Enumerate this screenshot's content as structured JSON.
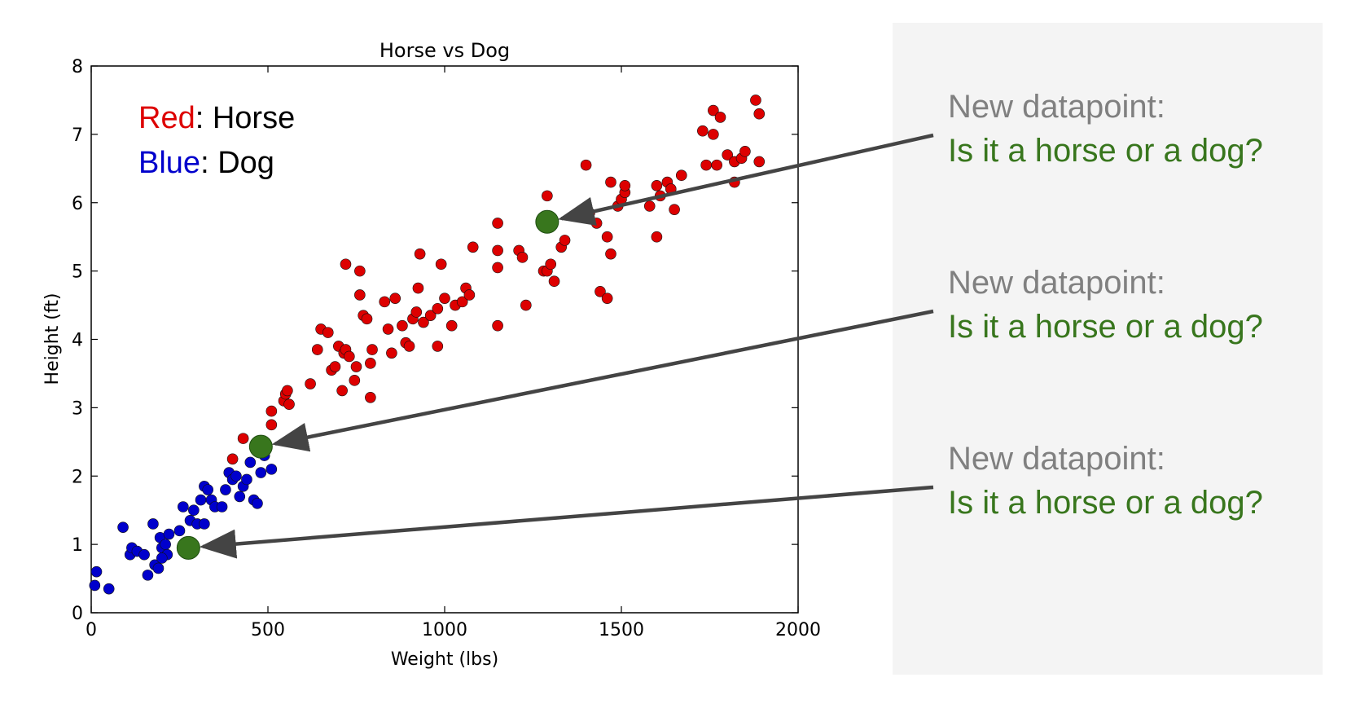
{
  "chart_data": {
    "type": "scatter",
    "title": "Horse vs Dog",
    "xlabel": "Weight (lbs)",
    "ylabel": "Height (ft)",
    "xlim": [
      0,
      2000
    ],
    "ylim": [
      0,
      8
    ],
    "xticks": [
      0,
      500,
      1000,
      1500,
      2000
    ],
    "yticks": [
      0,
      1,
      2,
      3,
      4,
      5,
      6,
      7,
      8
    ],
    "grid": false,
    "legend": {
      "position": "top-left",
      "entries": [
        {
          "color_word": "Red",
          "separator": ": ",
          "label": "Horse",
          "color": "#dd0000"
        },
        {
          "color_word": "Blue",
          "separator": ": ",
          "label": "Dog",
          "color": "#0000cc"
        }
      ]
    },
    "series": [
      {
        "name": "Horse",
        "color": "#dd0000",
        "points": [
          [
            400,
            2.25
          ],
          [
            430,
            2.55
          ],
          [
            510,
            2.75
          ],
          [
            510,
            2.95
          ],
          [
            545,
            3.1
          ],
          [
            550,
            3.2
          ],
          [
            555,
            3.25
          ],
          [
            560,
            3.05
          ],
          [
            620,
            3.35
          ],
          [
            640,
            3.85
          ],
          [
            650,
            4.15
          ],
          [
            670,
            4.1
          ],
          [
            680,
            3.55
          ],
          [
            690,
            3.6
          ],
          [
            700,
            3.9
          ],
          [
            710,
            3.25
          ],
          [
            715,
            3.8
          ],
          [
            720,
            3.85
          ],
          [
            730,
            3.75
          ],
          [
            745,
            3.4
          ],
          [
            750,
            3.6
          ],
          [
            760,
            4.65
          ],
          [
            770,
            4.35
          ],
          [
            780,
            4.3
          ],
          [
            790,
            3.65
          ],
          [
            790,
            3.15
          ],
          [
            795,
            3.85
          ],
          [
            720,
            5.1
          ],
          [
            760,
            5.0
          ],
          [
            830,
            4.55
          ],
          [
            840,
            4.15
          ],
          [
            850,
            3.8
          ],
          [
            860,
            4.6
          ],
          [
            880,
            4.2
          ],
          [
            890,
            3.95
          ],
          [
            900,
            3.9
          ],
          [
            910,
            4.3
          ],
          [
            920,
            4.4
          ],
          [
            925,
            4.75
          ],
          [
            930,
            5.25
          ],
          [
            940,
            4.25
          ],
          [
            960,
            4.35
          ],
          [
            980,
            4.45
          ],
          [
            980,
            3.9
          ],
          [
            990,
            5.1
          ],
          [
            1000,
            4.6
          ],
          [
            1020,
            4.2
          ],
          [
            1030,
            4.5
          ],
          [
            1050,
            4.55
          ],
          [
            1060,
            4.75
          ],
          [
            1070,
            4.65
          ],
          [
            1080,
            5.35
          ],
          [
            1150,
            4.2
          ],
          [
            1150,
            5.3
          ],
          [
            1150,
            5.05
          ],
          [
            1150,
            5.7
          ],
          [
            1210,
            5.3
          ],
          [
            1220,
            5.2
          ],
          [
            1230,
            4.5
          ],
          [
            1280,
            5.0
          ],
          [
            1290,
            5.0
          ],
          [
            1290,
            6.1
          ],
          [
            1300,
            5.1
          ],
          [
            1310,
            4.85
          ],
          [
            1330,
            5.35
          ],
          [
            1340,
            5.45
          ],
          [
            1400,
            6.55
          ],
          [
            1410,
            5.85
          ],
          [
            1430,
            5.7
          ],
          [
            1440,
            4.7
          ],
          [
            1460,
            4.6
          ],
          [
            1460,
            5.5
          ],
          [
            1470,
            5.25
          ],
          [
            1470,
            6.3
          ],
          [
            1490,
            5.95
          ],
          [
            1500,
            6.05
          ],
          [
            1510,
            6.15
          ],
          [
            1510,
            6.25
          ],
          [
            1580,
            5.95
          ],
          [
            1600,
            5.5
          ],
          [
            1600,
            6.25
          ],
          [
            1610,
            6.1
          ],
          [
            1630,
            6.3
          ],
          [
            1640,
            6.2
          ],
          [
            1650,
            5.9
          ],
          [
            1670,
            6.4
          ],
          [
            1730,
            7.05
          ],
          [
            1740,
            6.55
          ],
          [
            1760,
            7.0
          ],
          [
            1760,
            7.35
          ],
          [
            1770,
            6.55
          ],
          [
            1780,
            7.25
          ],
          [
            1800,
            6.7
          ],
          [
            1820,
            6.6
          ],
          [
            1820,
            6.3
          ],
          [
            1840,
            6.65
          ],
          [
            1850,
            6.75
          ],
          [
            1880,
            7.5
          ],
          [
            1890,
            7.3
          ],
          [
            1890,
            6.6
          ]
        ]
      },
      {
        "name": "Dog",
        "color": "#0000cc",
        "points": [
          [
            10,
            0.4
          ],
          [
            15,
            0.6
          ],
          [
            50,
            0.35
          ],
          [
            90,
            1.25
          ],
          [
            110,
            0.85
          ],
          [
            115,
            0.95
          ],
          [
            130,
            0.9
          ],
          [
            150,
            0.85
          ],
          [
            160,
            0.55
          ],
          [
            175,
            1.3
          ],
          [
            180,
            0.7
          ],
          [
            190,
            0.65
          ],
          [
            195,
            1.1
          ],
          [
            200,
            0.95
          ],
          [
            210,
            1.0
          ],
          [
            215,
            0.85
          ],
          [
            220,
            1.15
          ],
          [
            250,
            1.2
          ],
          [
            260,
            1.55
          ],
          [
            280,
            1.35
          ],
          [
            290,
            1.5
          ],
          [
            300,
            1.3
          ],
          [
            310,
            1.65
          ],
          [
            320,
            1.85
          ],
          [
            330,
            1.8
          ],
          [
            340,
            1.65
          ],
          [
            350,
            1.55
          ],
          [
            370,
            1.55
          ],
          [
            380,
            1.8
          ],
          [
            390,
            2.05
          ],
          [
            400,
            1.95
          ],
          [
            410,
            2.0
          ],
          [
            420,
            1.7
          ],
          [
            430,
            1.85
          ],
          [
            440,
            1.95
          ],
          [
            450,
            2.2
          ],
          [
            460,
            1.65
          ],
          [
            470,
            1.6
          ],
          [
            480,
            2.05
          ],
          [
            490,
            2.3
          ],
          [
            510,
            2.1
          ],
          [
            320,
            1.3
          ],
          [
            200,
            0.8
          ]
        ]
      },
      {
        "name": "New datapoint",
        "color": "#38761d",
        "points": [
          [
            1290,
            5.72
          ],
          [
            480,
            2.43
          ],
          [
            275,
            0.95
          ]
        ]
      }
    ]
  },
  "annotations": [
    {
      "line1": "New datapoint:",
      "line2": "Is it a horse or a dog?"
    },
    {
      "line1": "New datapoint:",
      "line2": "Is it a horse or a dog?"
    },
    {
      "line1": "New datapoint:",
      "line2": "Is it a horse or a dog?"
    }
  ],
  "colors": {
    "question_gray": "#808080",
    "question_green": "#38761d",
    "arrow": "#444444",
    "panel_bg": "#f4f4f4"
  }
}
